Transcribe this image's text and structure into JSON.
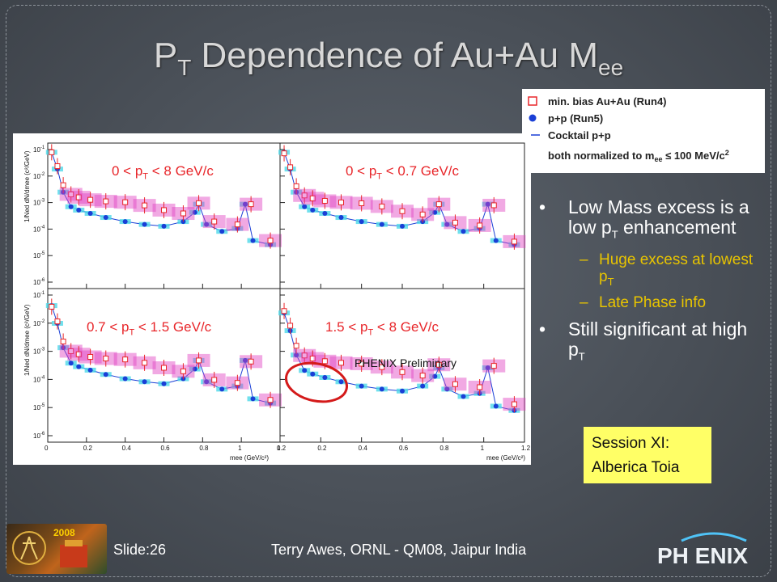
{
  "slide": {
    "title_main": "P",
    "title_sub1": "T",
    "title_rest": " Dependence of Au+Au M",
    "title_sub2": "ee",
    "footer_slide": "Slide:26",
    "footer_credit": "Terry Awes, ORNL - QM08, Jaipur India",
    "footer_logo_left_text": "2008",
    "footer_logo_right_text": "PH ENIX"
  },
  "legend": {
    "items": [
      {
        "label": "min. bias Au+Au (Run4)",
        "color": "#e8262a",
        "marker": "open-square"
      },
      {
        "label": "p+p (Run5)",
        "color": "#1a3fd6",
        "marker": "filled-circle"
      },
      {
        "label": "Cocktail p+p",
        "color": "#1a3fd6",
        "marker": "line"
      }
    ],
    "note": "both normalized to m",
    "note_sub": "ee",
    "note_tail": " ≤ 100 MeV/c",
    "note_sup": "2"
  },
  "panels": [
    {
      "pre": "0 < p",
      "sub": "T",
      "post": " < 8 GeV/c"
    },
    {
      "pre": "0 < p",
      "sub": "T",
      "post": " < 0.7 GeV/c"
    },
    {
      "pre": "0.7 < p",
      "sub": "T",
      "post": " < 1.5 GeV/c"
    },
    {
      "pre": "1.5 < p",
      "sub": "T",
      "post": " < 8 GeV/c"
    }
  ],
  "plot": {
    "ylabel": "1/N",
    "ylabel_sub": "ed",
    "ylabel_tail": " dN/dm",
    "ylabel_sub2": "ee",
    "ylabel_unit": " (c²/GeV)",
    "xlabel": "m",
    "xlabel_sub": "ee",
    "xlabel_unit": " (GeV/c²)",
    "x_ticks": [
      "0",
      "0.2",
      "0.4",
      "0.6",
      "0.8",
      "1",
      "1.2"
    ],
    "y_ticks_exp": [
      "-1",
      "-2",
      "-3",
      "-4",
      "-5",
      "-6"
    ],
    "preliminary": "PHENIX Preliminary",
    "highlight_color": "#d41a1a"
  },
  "chart_data": {
    "type": "scatter",
    "xlim": [
      0,
      1.2
    ],
    "ylim": [
      1e-07,
      0.2
    ],
    "yscale": "log",
    "series": [
      {
        "name": "min. bias Au+Au (Run4)",
        "color": "#e8262a",
        "x": [
          0.02,
          0.05,
          0.08,
          0.12,
          0.16,
          0.22,
          0.3,
          0.4,
          0.5,
          0.6,
          0.7,
          0.78,
          0.86,
          0.98,
          1.05,
          1.15
        ],
        "y": [
          0.08,
          0.02,
          0.003,
          0.0012,
          0.0009,
          0.0007,
          0.0006,
          0.00055,
          0.0004,
          0.00025,
          0.00018,
          0.0005,
          8e-05,
          6e-05,
          0.00045,
          1.2e-05
        ]
      },
      {
        "name": "p+p (Run5)",
        "color": "#1a3fd6",
        "x": [
          0.02,
          0.05,
          0.08,
          0.12,
          0.16,
          0.22,
          0.3,
          0.4,
          0.5,
          0.6,
          0.7,
          0.76,
          0.78,
          0.82,
          0.9,
          0.98,
          1.02,
          1.06,
          1.15
        ],
        "y": [
          0.08,
          0.015,
          0.0015,
          0.00035,
          0.00025,
          0.00018,
          0.00012,
          8e-05,
          6e-05,
          5e-05,
          8e-05,
          0.0002,
          0.00045,
          6e-05,
          3e-05,
          4e-05,
          0.00045,
          1.2e-05,
          8e-06
        ]
      }
    ]
  },
  "bullets": {
    "b1_pre": "Low Mass excess is a low p",
    "b1_sub": "T",
    "b1_post": " enhancement",
    "s1_pre": "Huge excess at lowest p",
    "s1_sub": "T",
    "s2": "Late Phase info",
    "b2_pre": "Still significant at high p",
    "b2_sub": "T"
  },
  "session": {
    "line1": "Session XI:",
    "line2": "Alberica Toia"
  }
}
